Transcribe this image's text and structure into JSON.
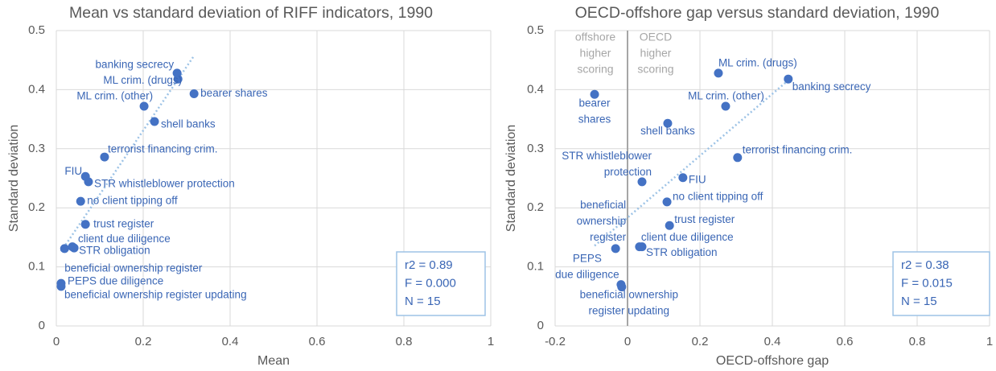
{
  "chart_data": [
    {
      "type": "scatter",
      "title": "Mean vs standard deviation of RIFF indicators, 1990",
      "xlabel": "Mean",
      "ylabel": "Standard deviation",
      "point_labels": [
        "banking secrecy",
        "ML crim. (drugs)",
        "bearer shares",
        "ML crim. (other)",
        "shell banks",
        "terrorist financing crim.",
        "FIU",
        "STR whistleblower protection",
        "no client tipping off",
        "trust register",
        "client due diligence",
        "STR obligation",
        "beneficial ownership register",
        "PEPS due diligence",
        "beneficial ownership register updating"
      ],
      "x": [
        0.278,
        0.28,
        0.317,
        0.202,
        0.226,
        0.111,
        0.067,
        0.074,
        0.056,
        0.067,
        0.037,
        0.041,
        0.019,
        0.011,
        0.011
      ],
      "values": [
        0.428,
        0.418,
        0.393,
        0.372,
        0.346,
        0.286,
        0.253,
        0.244,
        0.211,
        0.172,
        0.134,
        0.132,
        0.131,
        0.072,
        0.067
      ],
      "color": "#4472c4",
      "trendline": true,
      "trendline_color": "#9dc3e6",
      "grid": true,
      "xlim": [
        0,
        1
      ],
      "xticks": [
        0,
        0.2,
        0.4,
        0.6,
        0.8,
        1
      ],
      "ylim": [
        0,
        0.5
      ],
      "yticks": [
        0,
        0.1,
        0.2,
        0.3,
        0.4,
        0.5
      ],
      "stats": [
        "r2 =  0.89",
        "F = 0.000",
        "N = 15"
      ]
    },
    {
      "type": "scatter",
      "title": "OECD-offshore gap versus standard deviation, 1990",
      "xlabel": "OECD-offshore gap",
      "ylabel": "Standard deviation",
      "point_labels": [
        "banking secrecy",
        "ML crim. (drugs)",
        "bearer shares",
        "ML crim. (other)",
        "shell banks",
        "terrorist financing crim.",
        "FIU",
        "STR whistleblower protection",
        "no client tipping off",
        "trust register",
        "client due diligence",
        "STR obligation",
        "beneficial ownership register",
        "PEPS due diligence",
        "beneficial ownership register updating"
      ],
      "x": [
        0.444,
        0.251,
        -0.091,
        0.271,
        0.111,
        0.304,
        0.153,
        0.04,
        0.109,
        0.116,
        0.033,
        0.04,
        -0.033,
        -0.018,
        -0.016
      ],
      "values": [
        0.418,
        0.428,
        0.392,
        0.372,
        0.343,
        0.285,
        0.251,
        0.244,
        0.21,
        0.17,
        0.134,
        0.134,
        0.131,
        0.07,
        0.066
      ],
      "color": "#4472c4",
      "trendline": true,
      "trendline_color": "#9dc3e6",
      "grid": true,
      "xlim": [
        -0.2,
        1
      ],
      "xticks": [
        -0.2,
        0,
        0.2,
        0.4,
        0.6,
        0.8,
        1
      ],
      "ylim": [
        0,
        0.5
      ],
      "yticks": [
        0,
        0.1,
        0.2,
        0.3,
        0.4,
        0.5
      ],
      "region_labels": [
        [
          "offshore",
          "higher",
          "scoring"
        ],
        [
          "OECD",
          "higher",
          "scoring"
        ]
      ],
      "stats": [
        "r2 =  0.38",
        "F = 0.015",
        "N = 15"
      ]
    }
  ]
}
